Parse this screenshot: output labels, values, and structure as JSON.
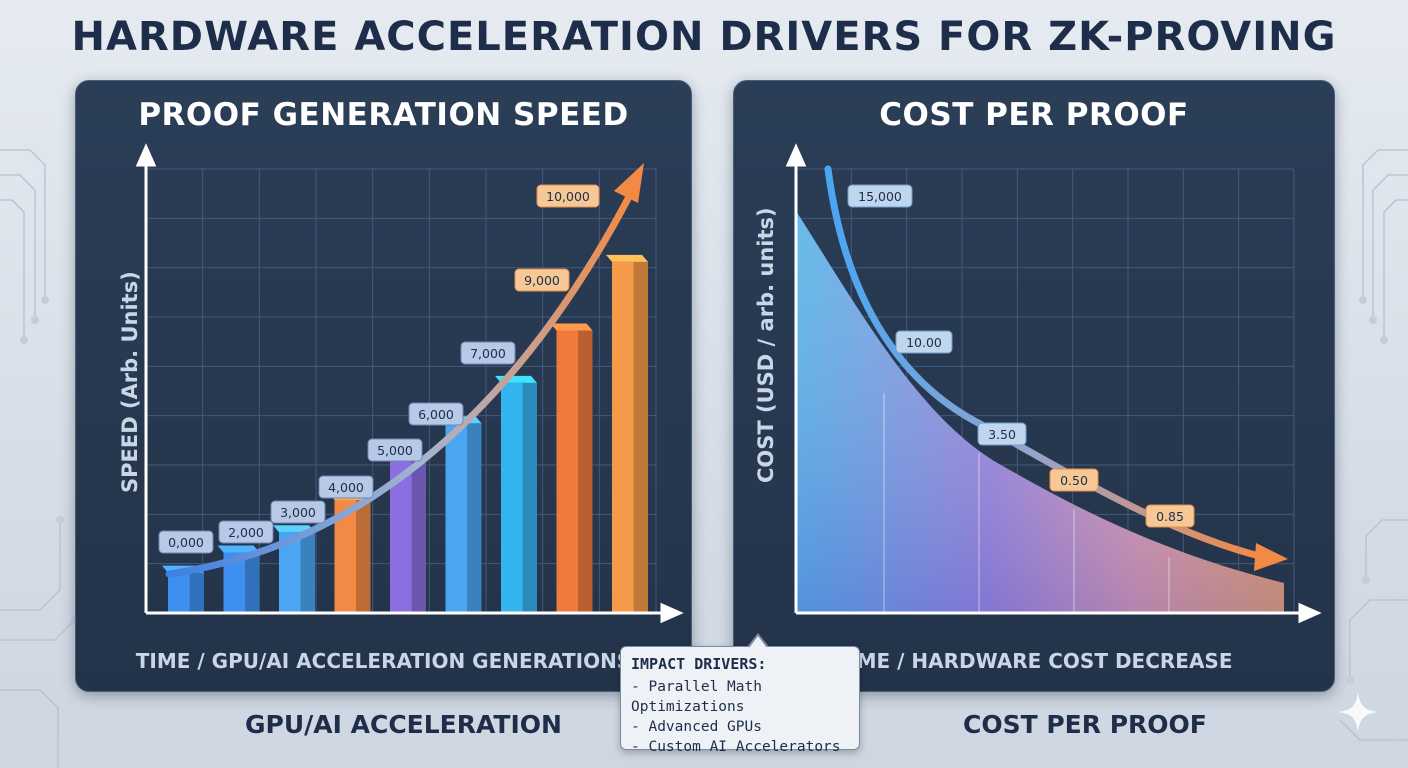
{
  "title": "HARDWARE ACCELERATION DRIVERS FOR ZK-PROVING",
  "colors": {
    "background": "#dfe5ec",
    "panel": "#263850",
    "title": "#1e2e4a",
    "accent_blue": "#3f8ff0",
    "accent_orange": "#f28a45"
  },
  "chart_data": [
    {
      "type": "bar",
      "title": "PROOF GENERATION SPEED",
      "xlabel": "TIME / GPU/AI ACCELERATION GENERATIONS",
      "ylabel": "SPEED (Arb. Units)",
      "ylim": [
        0,
        11000
      ],
      "grid": true,
      "values": [
        1000,
        1500,
        2000,
        2800,
        3800,
        4700,
        5700,
        7000,
        8700
      ],
      "trend_labels": [
        "0,000",
        "2,000",
        "3,000",
        "4,000",
        "5,000",
        "6,000",
        "7,000",
        "9,000",
        "10,000"
      ],
      "bar_colors": [
        "#3f8ff0",
        "#3f8ff0",
        "#4aa6f2",
        "#f28a45",
        "#8b6fe0",
        "#4aa6f2",
        "#34b4ee",
        "#f07a3c",
        "#f59a48"
      ],
      "trend": "exponential rising arrow"
    },
    {
      "type": "area",
      "title": "COST PER PROOF",
      "xlabel": "TIME / HARDWARE COST DECREASE",
      "ylabel": "COST (USD / arb. units)",
      "grid": true,
      "labels": [
        "15,000",
        "10.00",
        "3.50",
        "0.50",
        "0.85"
      ],
      "trend": "decaying curve with arrow"
    }
  ],
  "captions": {
    "left": "GPU/AI ACCELERATION",
    "right": "COST PER PROOF"
  },
  "impact": {
    "heading": "IMPACT DRIVERS:",
    "items": [
      "- Parallel Math Optimizations",
      "- Advanced GPUs",
      "- Custom AI Accelerators"
    ]
  }
}
